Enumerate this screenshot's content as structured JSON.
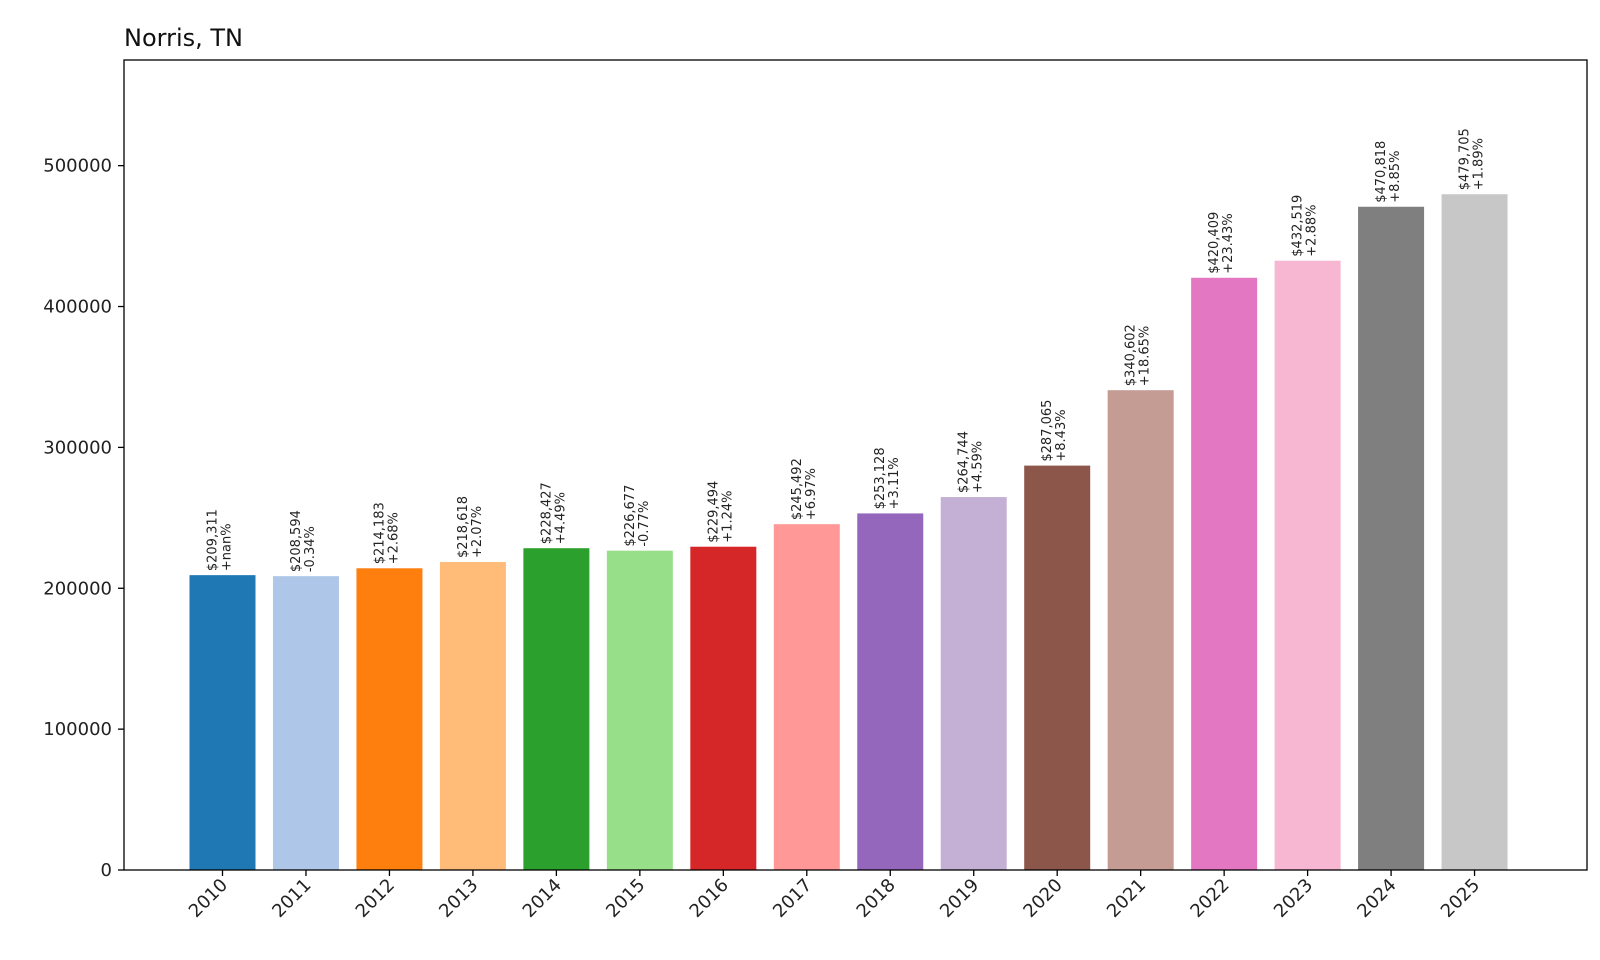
{
  "chart_data": {
    "type": "bar",
    "title": "Norris, TN",
    "xlabel": "",
    "ylabel": "",
    "ylim": [
      0,
      575000
    ],
    "yticks": [
      0,
      100000,
      200000,
      300000,
      400000,
      500000
    ],
    "grid": false,
    "categories": [
      "2010",
      "2011",
      "2012",
      "2013",
      "2014",
      "2015",
      "2016",
      "2017",
      "2018",
      "2019",
      "2020",
      "2021",
      "2022",
      "2023",
      "2024",
      "2025"
    ],
    "values": [
      209311,
      208594,
      214183,
      218618,
      228427,
      226677,
      229494,
      245492,
      253128,
      264744,
      287065,
      340602,
      420409,
      432519,
      470818,
      479705
    ],
    "value_labels": [
      "$209,311",
      "$208,594",
      "$214,183",
      "$218,618",
      "$228,427",
      "$226,677",
      "$229,494",
      "$245,492",
      "$253,128",
      "$264,744",
      "$287,065",
      "$340,602",
      "$420,409",
      "$432,519",
      "$470,818",
      "$479,705"
    ],
    "change_labels": [
      "+nan%",
      "-0.34%",
      "+2.68%",
      "+2.07%",
      "+4.49%",
      "-0.77%",
      "+1.24%",
      "+6.97%",
      "+3.11%",
      "+4.59%",
      "+8.43%",
      "+18.65%",
      "+23.43%",
      "+2.88%",
      "+8.85%",
      "+1.89%"
    ],
    "colors": [
      "#1f77b4",
      "#aec7e8",
      "#ff7f0e",
      "#ffbb78",
      "#2ca02c",
      "#98df8a",
      "#d62728",
      "#ff9896",
      "#9467bd",
      "#c5b0d5",
      "#8c564b",
      "#c49c94",
      "#e377c2",
      "#f7b6d2",
      "#7f7f7f",
      "#c7c7c7"
    ]
  }
}
